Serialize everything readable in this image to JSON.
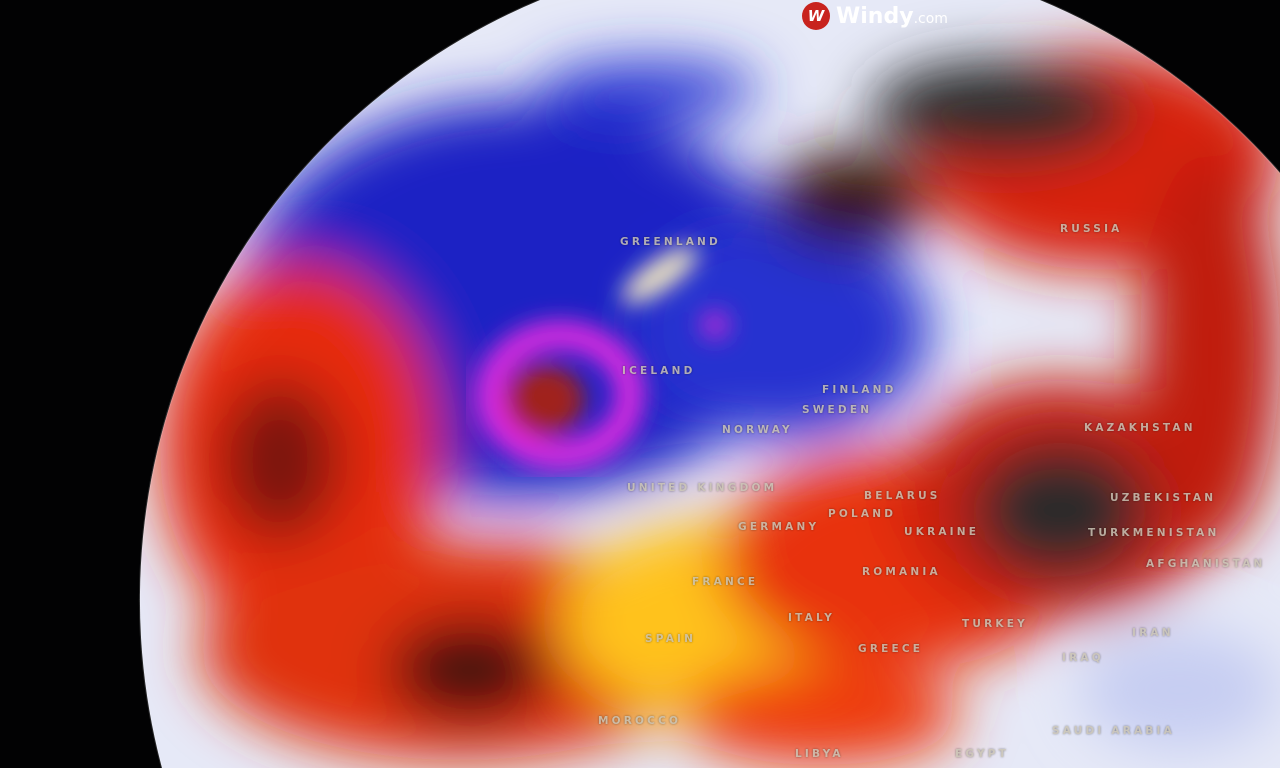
{
  "brand": {
    "name": "Windy",
    "suffix": ".com",
    "logo_color": "#c8231e"
  },
  "map": {
    "labels": {
      "greenland": "GREENLAND",
      "iceland": "ICELAND",
      "russia": "RUSSIA",
      "finland": "FINLAND",
      "norway": "NORWAY",
      "sweden": "SWEDEN",
      "united_kingdom": "UNITED KINGDOM",
      "belarus": "BELARUS",
      "poland": "POLAND",
      "germany": "GERMANY",
      "ukraine": "UKRAINE",
      "kazakhstan": "KAZAKHSTAN",
      "uzbekistan": "UZBEKISTAN",
      "turkmenistan": "TURKMENISTAN",
      "afghanistan": "AFGHANISTAN",
      "france": "FRANCE",
      "romania": "ROMANIA",
      "spain": "SPAIN",
      "italy": "ITALY",
      "greece": "GREECE",
      "turkey": "TURKEY",
      "iraq": "IRAQ",
      "iran": "IRAN",
      "morocco": "MOROCCO",
      "saudi_arabia": "SAUDI ARABIA",
      "egypt": "EGYPT",
      "libya": "LIBYA"
    },
    "palette": {
      "cold": "#1a1fc8",
      "very_cold": "#d22ad6",
      "neutral": "#e8ecf8",
      "warm": "#ffd21a",
      "hot": "#e8200e",
      "very_hot": "#2a2a2a"
    }
  }
}
